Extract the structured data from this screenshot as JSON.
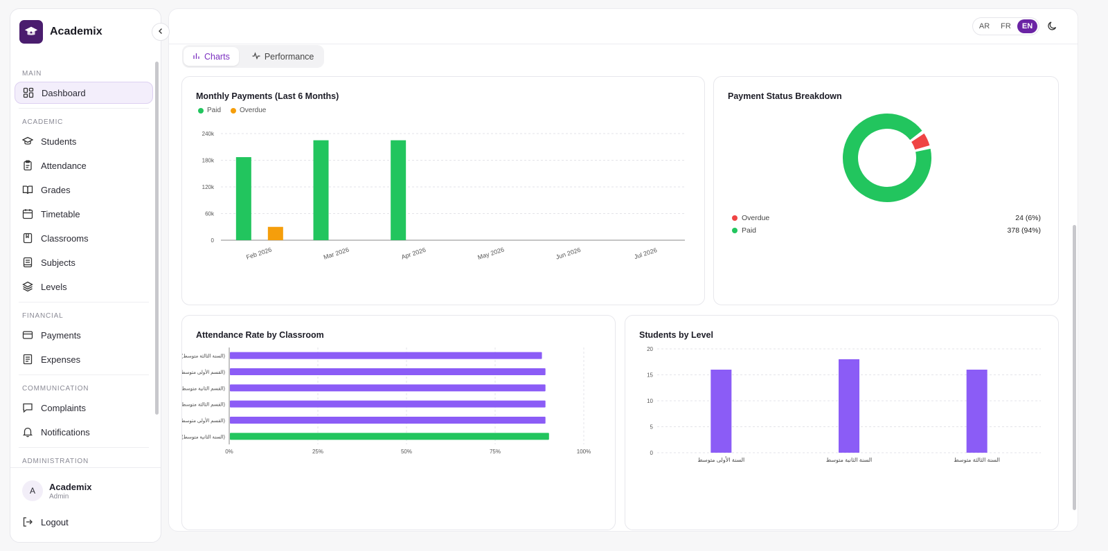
{
  "app": {
    "name": "Academix"
  },
  "sidebar": {
    "sections": [
      {
        "title": "MAIN",
        "items": [
          {
            "label": "Dashboard",
            "icon": "dashboard-icon",
            "active": true
          }
        ]
      },
      {
        "title": "ACADEMIC",
        "items": [
          {
            "label": "Students",
            "icon": "graduation-cap-icon"
          },
          {
            "label": "Attendance",
            "icon": "clipboard-icon"
          },
          {
            "label": "Grades",
            "icon": "book-open-icon"
          },
          {
            "label": "Timetable",
            "icon": "calendar-icon"
          },
          {
            "label": "Classrooms",
            "icon": "bookmark-book-icon"
          },
          {
            "label": "Subjects",
            "icon": "notebook-icon"
          },
          {
            "label": "Levels",
            "icon": "layers-icon"
          }
        ]
      },
      {
        "title": "FINANCIAL",
        "items": [
          {
            "label": "Payments",
            "icon": "credit-card-icon"
          },
          {
            "label": "Expenses",
            "icon": "receipt-icon"
          }
        ]
      },
      {
        "title": "COMMUNICATION",
        "items": [
          {
            "label": "Complaints",
            "icon": "message-icon"
          },
          {
            "label": "Notifications",
            "icon": "bell-icon"
          }
        ]
      },
      {
        "title": "ADMINISTRATION",
        "items": []
      }
    ],
    "user": {
      "initial": "A",
      "name": "Academix",
      "role": "Admin"
    },
    "logout_label": "Logout"
  },
  "header": {
    "languages": [
      {
        "code": "AR"
      },
      {
        "code": "FR"
      },
      {
        "code": "EN",
        "active": true
      }
    ]
  },
  "tabs": [
    {
      "label": "Charts",
      "icon": "bar-chart-icon",
      "active": true
    },
    {
      "label": "Performance",
      "icon": "activity-icon"
    }
  ],
  "colors": {
    "accent": "#6a23a4",
    "paid": "#22c55e",
    "overdue": "#f59e0b",
    "overdue_status": "#ef4444",
    "purple_bar": "#8b5cf6"
  },
  "chart_data": [
    {
      "type": "bar",
      "title": "Monthly Payments (Last 6 Months)",
      "categories": [
        "Feb 2026",
        "Mar 2026",
        "Apr 2026",
        "May 2026",
        "Jun 2026",
        "Jul 2026"
      ],
      "series": [
        {
          "name": "Paid",
          "values": [
            187000,
            225000,
            225000,
            0,
            0,
            0
          ]
        },
        {
          "name": "Overdue",
          "values": [
            0,
            0,
            0,
            0,
            0,
            0
          ],
          "note_values": [
            30000,
            0,
            0,
            0,
            0,
            0
          ]
        }
      ],
      "yticks": [
        "0",
        "60k",
        "120k",
        "180k",
        "240k"
      ],
      "ylim": [
        0,
        240000
      ],
      "grid": true,
      "legend": "top-left"
    },
    {
      "type": "pie",
      "title": "Payment Status Breakdown",
      "slices": [
        {
          "name": "Overdue",
          "value": 24,
          "display": "24 (6%)"
        },
        {
          "name": "Paid",
          "value": 378,
          "display": "378 (94%)"
        }
      ]
    },
    {
      "type": "bar",
      "orientation": "horizontal",
      "title": "Attendance Rate by Classroom",
      "categories": [
        "(السنة الثالثة متوسط)",
        "(القسم الأولى متوسط)",
        "(القسم الثانية متوسط)",
        "(القسم الثالثة متوسط)",
        "(القسم الأولى متوسط)",
        "(السنة الثانية متوسط)"
      ],
      "values": [
        88,
        89,
        89,
        89,
        89,
        90
      ],
      "xticks": [
        "0%",
        "25%",
        "50%",
        "75%",
        "100%"
      ],
      "xlim": [
        0,
        100
      ],
      "grid": true
    },
    {
      "type": "bar",
      "title": "Students by Level",
      "categories": [
        "السنة الأولى متوسط",
        "السنة الثانية متوسط",
        "السنة الثالثة متوسط"
      ],
      "values": [
        16,
        18,
        16
      ],
      "yticks": [
        "0",
        "5",
        "10",
        "15",
        "20"
      ],
      "ylim": [
        0,
        20
      ],
      "grid": true
    }
  ]
}
